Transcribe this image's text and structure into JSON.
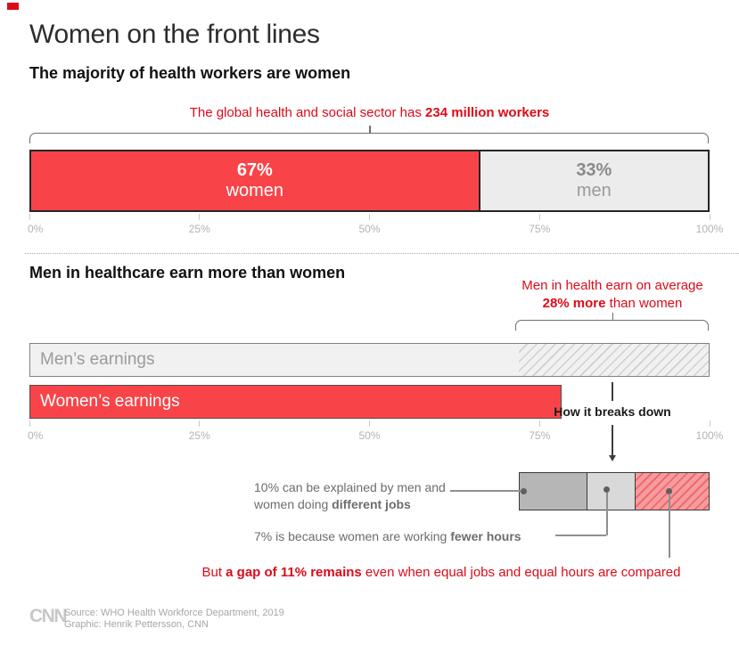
{
  "colors": {
    "bar-red": "#f84448",
    "text-red": "#dd0a18",
    "pink": "#f69c9e",
    "pink-line": "#ee6a6e"
  },
  "page": {
    "title": "Women on the front lines"
  },
  "section1": {
    "heading": "The majority of health workers are women",
    "annotation_pre": "The global health and social sector has ",
    "annotation_bold": "234 million workers",
    "women_pct": "67%",
    "women_label": "women",
    "men_pct": "33%",
    "men_label": "men",
    "axis_ticks": [
      "0%",
      "25%",
      "50%",
      "75%",
      "100%"
    ]
  },
  "section2": {
    "heading": "Men in healthcare earn more than women",
    "annotation_line1": "Men in health earn on average",
    "annotation_bold": "28% more",
    "annotation_rest": " than women",
    "men_bar_label": "Men’s earnings",
    "women_bar_label": "Women’s earnings",
    "axis_ticks": [
      "0%",
      "25%",
      "50%",
      "75%",
      "100%"
    ],
    "breakdown_title": "How it breaks down",
    "jobs_line1": "10% can be explained by men and",
    "jobs_line2_pre": "women doing ",
    "jobs_line2_bold": "different jobs",
    "hours_pre": "7% is because women are working ",
    "hours_bold": "fewer hours",
    "conclusion_pre": "But ",
    "conclusion_bold": "a gap of 11% remains",
    "conclusion_post": " even when equal jobs and equal hours are compared"
  },
  "footer": {
    "logo": "CNN",
    "source": "Source: WHO Health Workforce Department, 2019",
    "credit": "Graphic: Henrik Pettersson, CNN"
  },
  "chart_data": [
    {
      "type": "bar",
      "orientation": "horizontal-stacked",
      "title": "The majority of health workers are women",
      "annotation": "The global health and social sector has 234 million workers",
      "categories": [
        "women",
        "men"
      ],
      "values": [
        67,
        33
      ],
      "unit": "%",
      "xlim": [
        0,
        100
      ],
      "tick_labels": [
        "0%",
        "25%",
        "50%",
        "75%",
        "100%"
      ]
    },
    {
      "type": "bar",
      "orientation": "horizontal",
      "title": "Men in healthcare earn more than women",
      "annotation": "Men in health earn on average 28% more than women",
      "series": [
        {
          "name": "Men’s earnings",
          "value": 100
        },
        {
          "name": "Women’s earnings",
          "value": 72
        }
      ],
      "gap_pct": 28,
      "xlim": [
        0,
        100
      ],
      "tick_labels": [
        "0%",
        "25%",
        "50%",
        "75%",
        "100%"
      ]
    },
    {
      "type": "bar",
      "orientation": "horizontal-stacked",
      "title": "How it breaks down",
      "categories": [
        "different jobs",
        "fewer hours",
        "unexplained gap"
      ],
      "values": [
        10,
        7,
        11
      ],
      "range": [
        72,
        100
      ],
      "note": "But a gap of 11% remains even when equal jobs and equal hours are compared"
    }
  ]
}
